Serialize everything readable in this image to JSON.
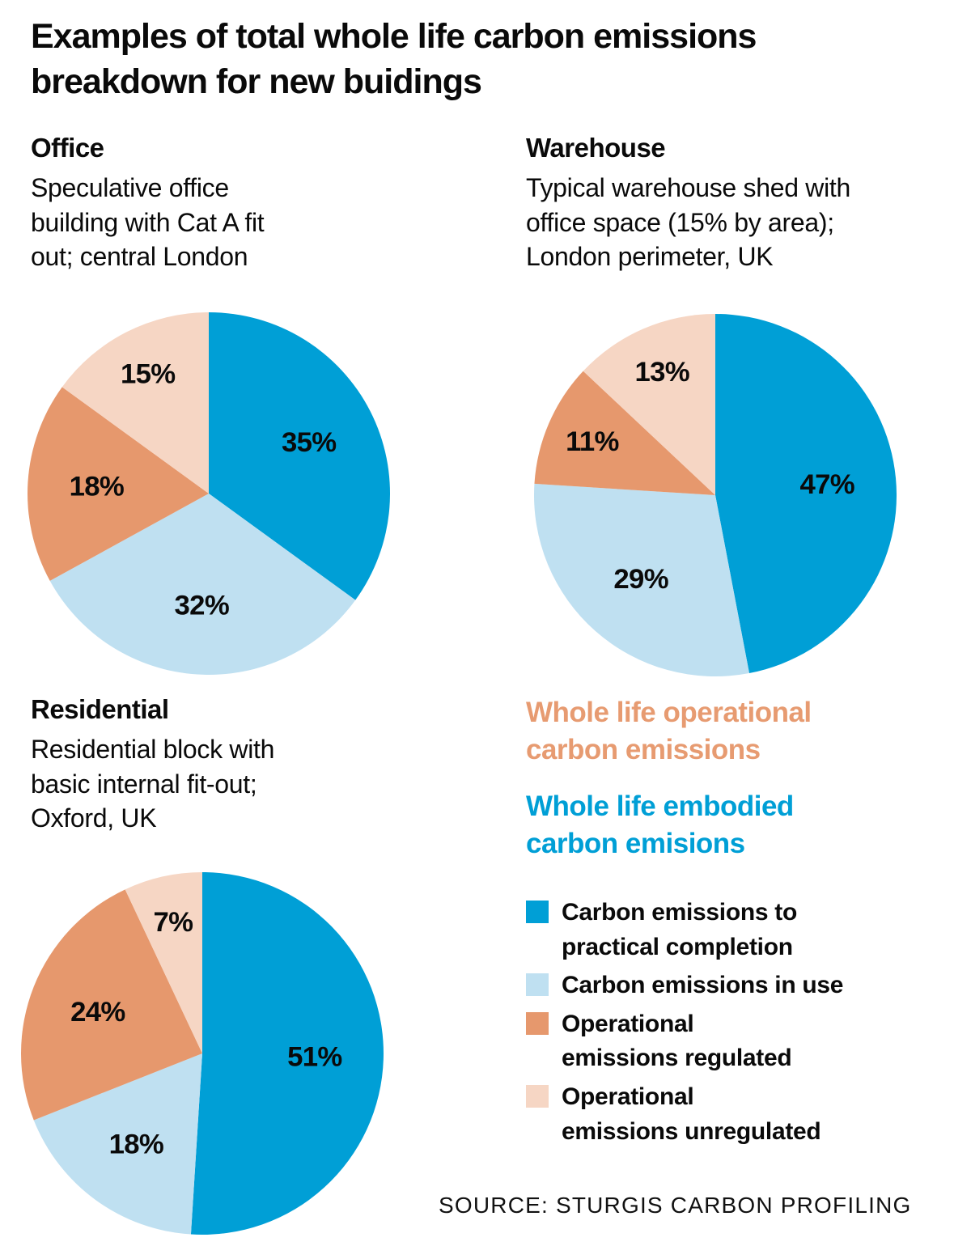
{
  "title": "Examples of total whole life carbon emissions\nbreakdown for new buidings",
  "colors": {
    "embodied_completion": "#009fd6",
    "embodied_in_use": "#bfe0f1",
    "operational_regulated": "#e6986d",
    "operational_unregulated": "#f6d6c4",
    "text": "#0a0a0a"
  },
  "sections": {
    "office": {
      "title": "Office",
      "description": "Speculative office\nbuilding with Cat A fit\nout; central London"
    },
    "warehouse": {
      "title": "Warehouse",
      "description": "Typical warehouse shed with\noffice space (15% by area);\nLondon perimeter, UK"
    },
    "residential": {
      "title": "Residential",
      "description": "Residential block with\nbasic internal fit-out;\nOxford, UK"
    }
  },
  "legend": {
    "group_operational": "Whole life operational\ncarbon emissions",
    "group_operational_color": "#e79b71",
    "group_embodied": "Whole life embodied\ncarbon emisions",
    "group_embodied_color": "#009fd6",
    "items": [
      {
        "label": "Carbon emissions to\npractical completion",
        "color": "#009fd6"
      },
      {
        "label": "Carbon emissions in use",
        "color": "#bfe0f1"
      },
      {
        "label": "Operational\nemissions regulated",
        "color": "#e6986d"
      },
      {
        "label": "Operational\nemissions unregulated",
        "color": "#f6d6c4"
      }
    ]
  },
  "source": "SOURCE: STURGIS CARBON PROFILING",
  "chart_data": [
    {
      "type": "pie",
      "title": "Office",
      "subtitle": "Speculative office building with Cat A fit out; central London",
      "labels": [
        "Carbon emissions to practical completion",
        "Carbon emissions in use",
        "Operational emissions regulated",
        "Operational emissions unregulated"
      ],
      "values": [
        35,
        32,
        18,
        15
      ],
      "unit": "%",
      "colors": [
        "#009fd6",
        "#bfe0f1",
        "#e6986d",
        "#f6d6c4"
      ],
      "start_angle": "top",
      "direction": "clockwise",
      "legend_position": "none"
    },
    {
      "type": "pie",
      "title": "Warehouse",
      "subtitle": "Typical warehouse shed with office space (15% by area); London perimeter, UK",
      "labels": [
        "Carbon emissions to practical completion",
        "Carbon emissions in use",
        "Operational emissions regulated",
        "Operational emissions unregulated"
      ],
      "values": [
        47,
        29,
        11,
        13
      ],
      "unit": "%",
      "colors": [
        "#009fd6",
        "#bfe0f1",
        "#e6986d",
        "#f6d6c4"
      ],
      "start_angle": "top",
      "direction": "clockwise",
      "legend_position": "none"
    },
    {
      "type": "pie",
      "title": "Residential",
      "subtitle": "Residential block with basic internal fit-out; Oxford, UK",
      "labels": [
        "Carbon emissions to practical completion",
        "Carbon emissions in use",
        "Operational emissions regulated",
        "Operational emissions unregulated"
      ],
      "values": [
        51,
        18,
        24,
        7
      ],
      "unit": "%",
      "colors": [
        "#009fd6",
        "#bfe0f1",
        "#e6986d",
        "#f6d6c4"
      ],
      "start_angle": "top",
      "direction": "clockwise",
      "legend_position": "none"
    }
  ]
}
